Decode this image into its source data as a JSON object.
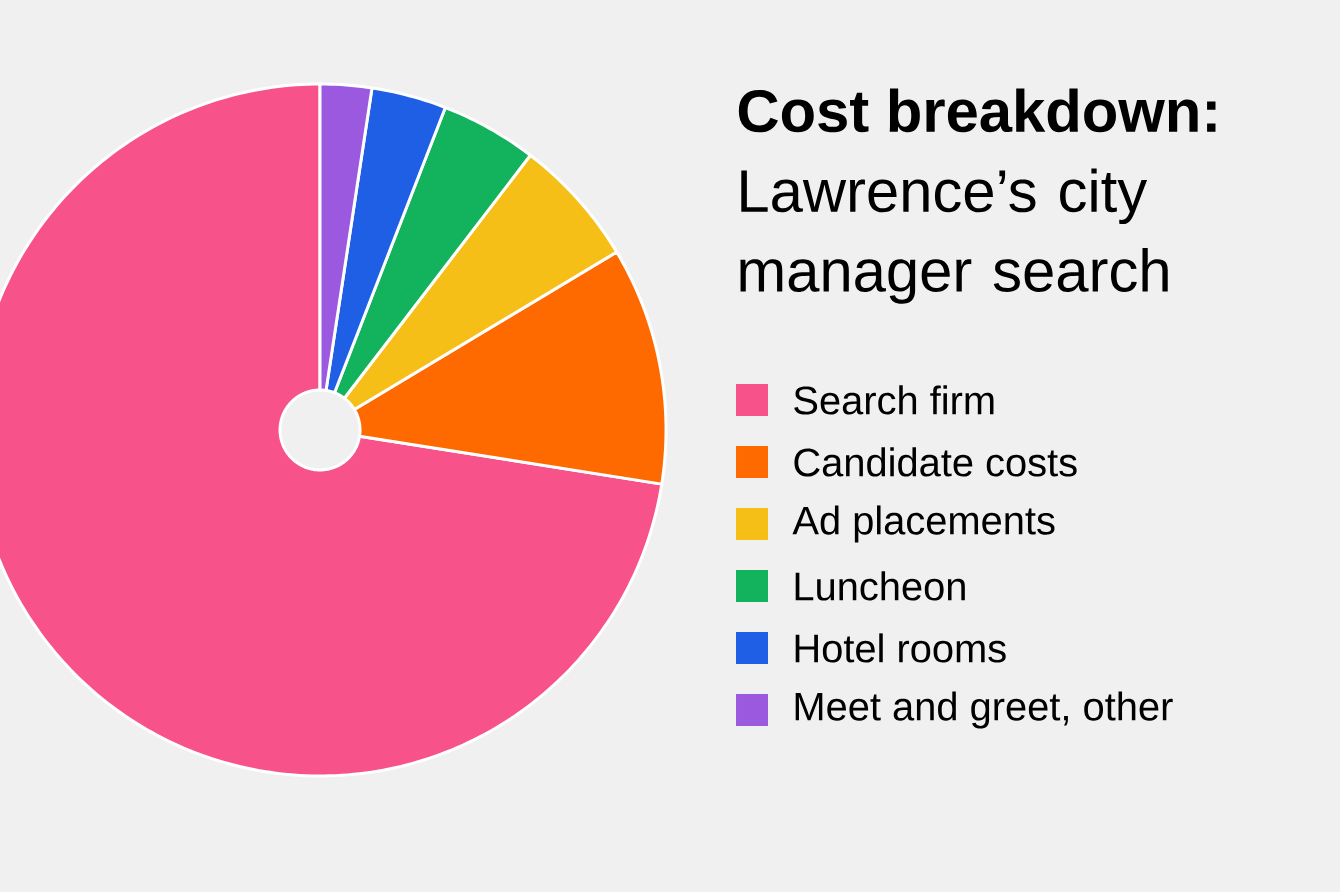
{
  "chart_data": {
    "type": "pie",
    "title": "Cost breakdown:",
    "subtitle": "Lawrence’s city manager search",
    "categories": [
      "Search firm",
      "Candidate costs",
      "Ad placements",
      "Luncheon",
      "Hotel rooms",
      "Meet and greet, other"
    ],
    "values": [
      72.5,
      11.1,
      6.0,
      4.5,
      3.5,
      2.4
    ],
    "colors": [
      "#f7528a",
      "#ff6a00",
      "#f5bf17",
      "#12b35c",
      "#1f5fe6",
      "#9b59e0"
    ],
    "legend": "right"
  }
}
